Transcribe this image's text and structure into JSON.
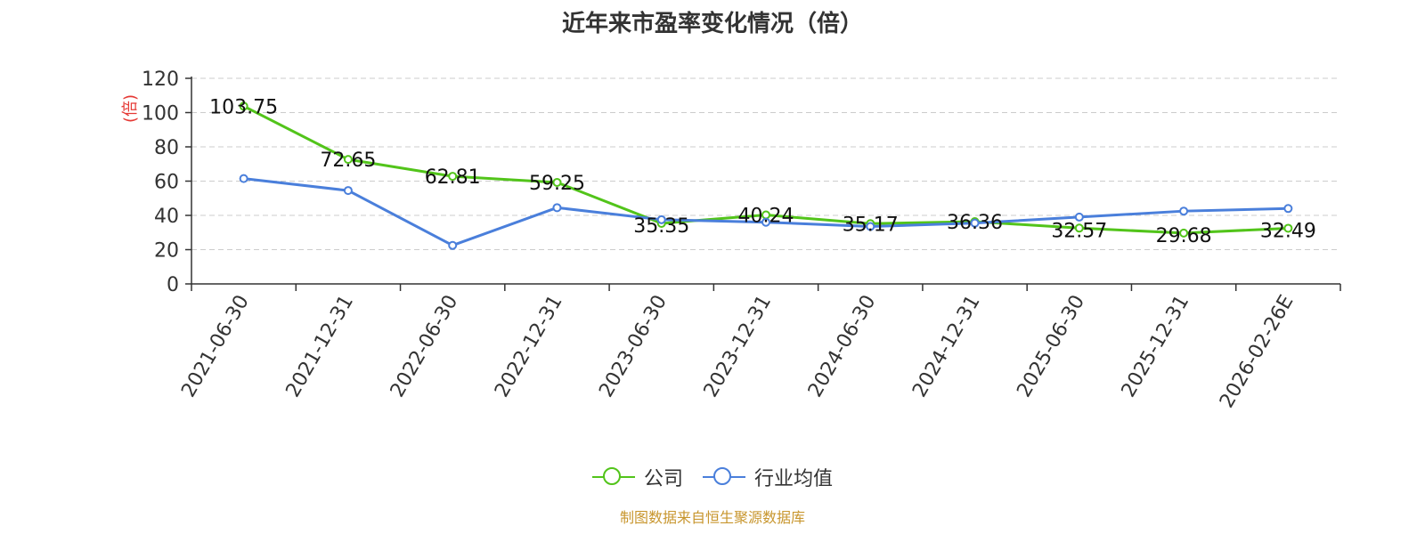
{
  "title": "近年来市盈率变化情况（倍）",
  "source": "制图数据来自恒生聚源数据库",
  "chart_data": {
    "type": "line",
    "title": "近年来市盈率变化情况（倍）",
    "ylabel": "(倍)",
    "xlabel": "",
    "categories": [
      "2021-06-30",
      "2021-12-31",
      "2022-06-30",
      "2022-12-31",
      "2023-06-30",
      "2023-12-31",
      "2024-06-30",
      "2024-12-31",
      "2025-06-30",
      "2025-12-31",
      "2026-02-26E"
    ],
    "series": [
      {
        "name": "公司",
        "color": "#52c41a",
        "values": [
          103.75,
          72.65,
          62.81,
          59.25,
          35.35,
          40.24,
          35.17,
          36.36,
          32.57,
          29.68,
          32.49
        ],
        "labels": [
          "103.75",
          "72.65",
          "62.81",
          "59.25",
          "35.35",
          "40.24",
          "35.17",
          "36.36",
          "32.57",
          "29.68",
          "32.49"
        ]
      },
      {
        "name": "行业均值",
        "color": "#4a7fdb",
        "values": [
          61.5,
          54.5,
          22.5,
          44.5,
          37.5,
          36.0,
          33.5,
          35.5,
          39.0,
          42.5,
          44.0
        ]
      }
    ],
    "yticks": [
      "0",
      "20",
      "40",
      "60",
      "80",
      "100",
      "120"
    ],
    "ylim": [
      0,
      120
    ],
    "grid": true,
    "legend_position": "bottom-center",
    "ylabel_color": "#e53935"
  }
}
